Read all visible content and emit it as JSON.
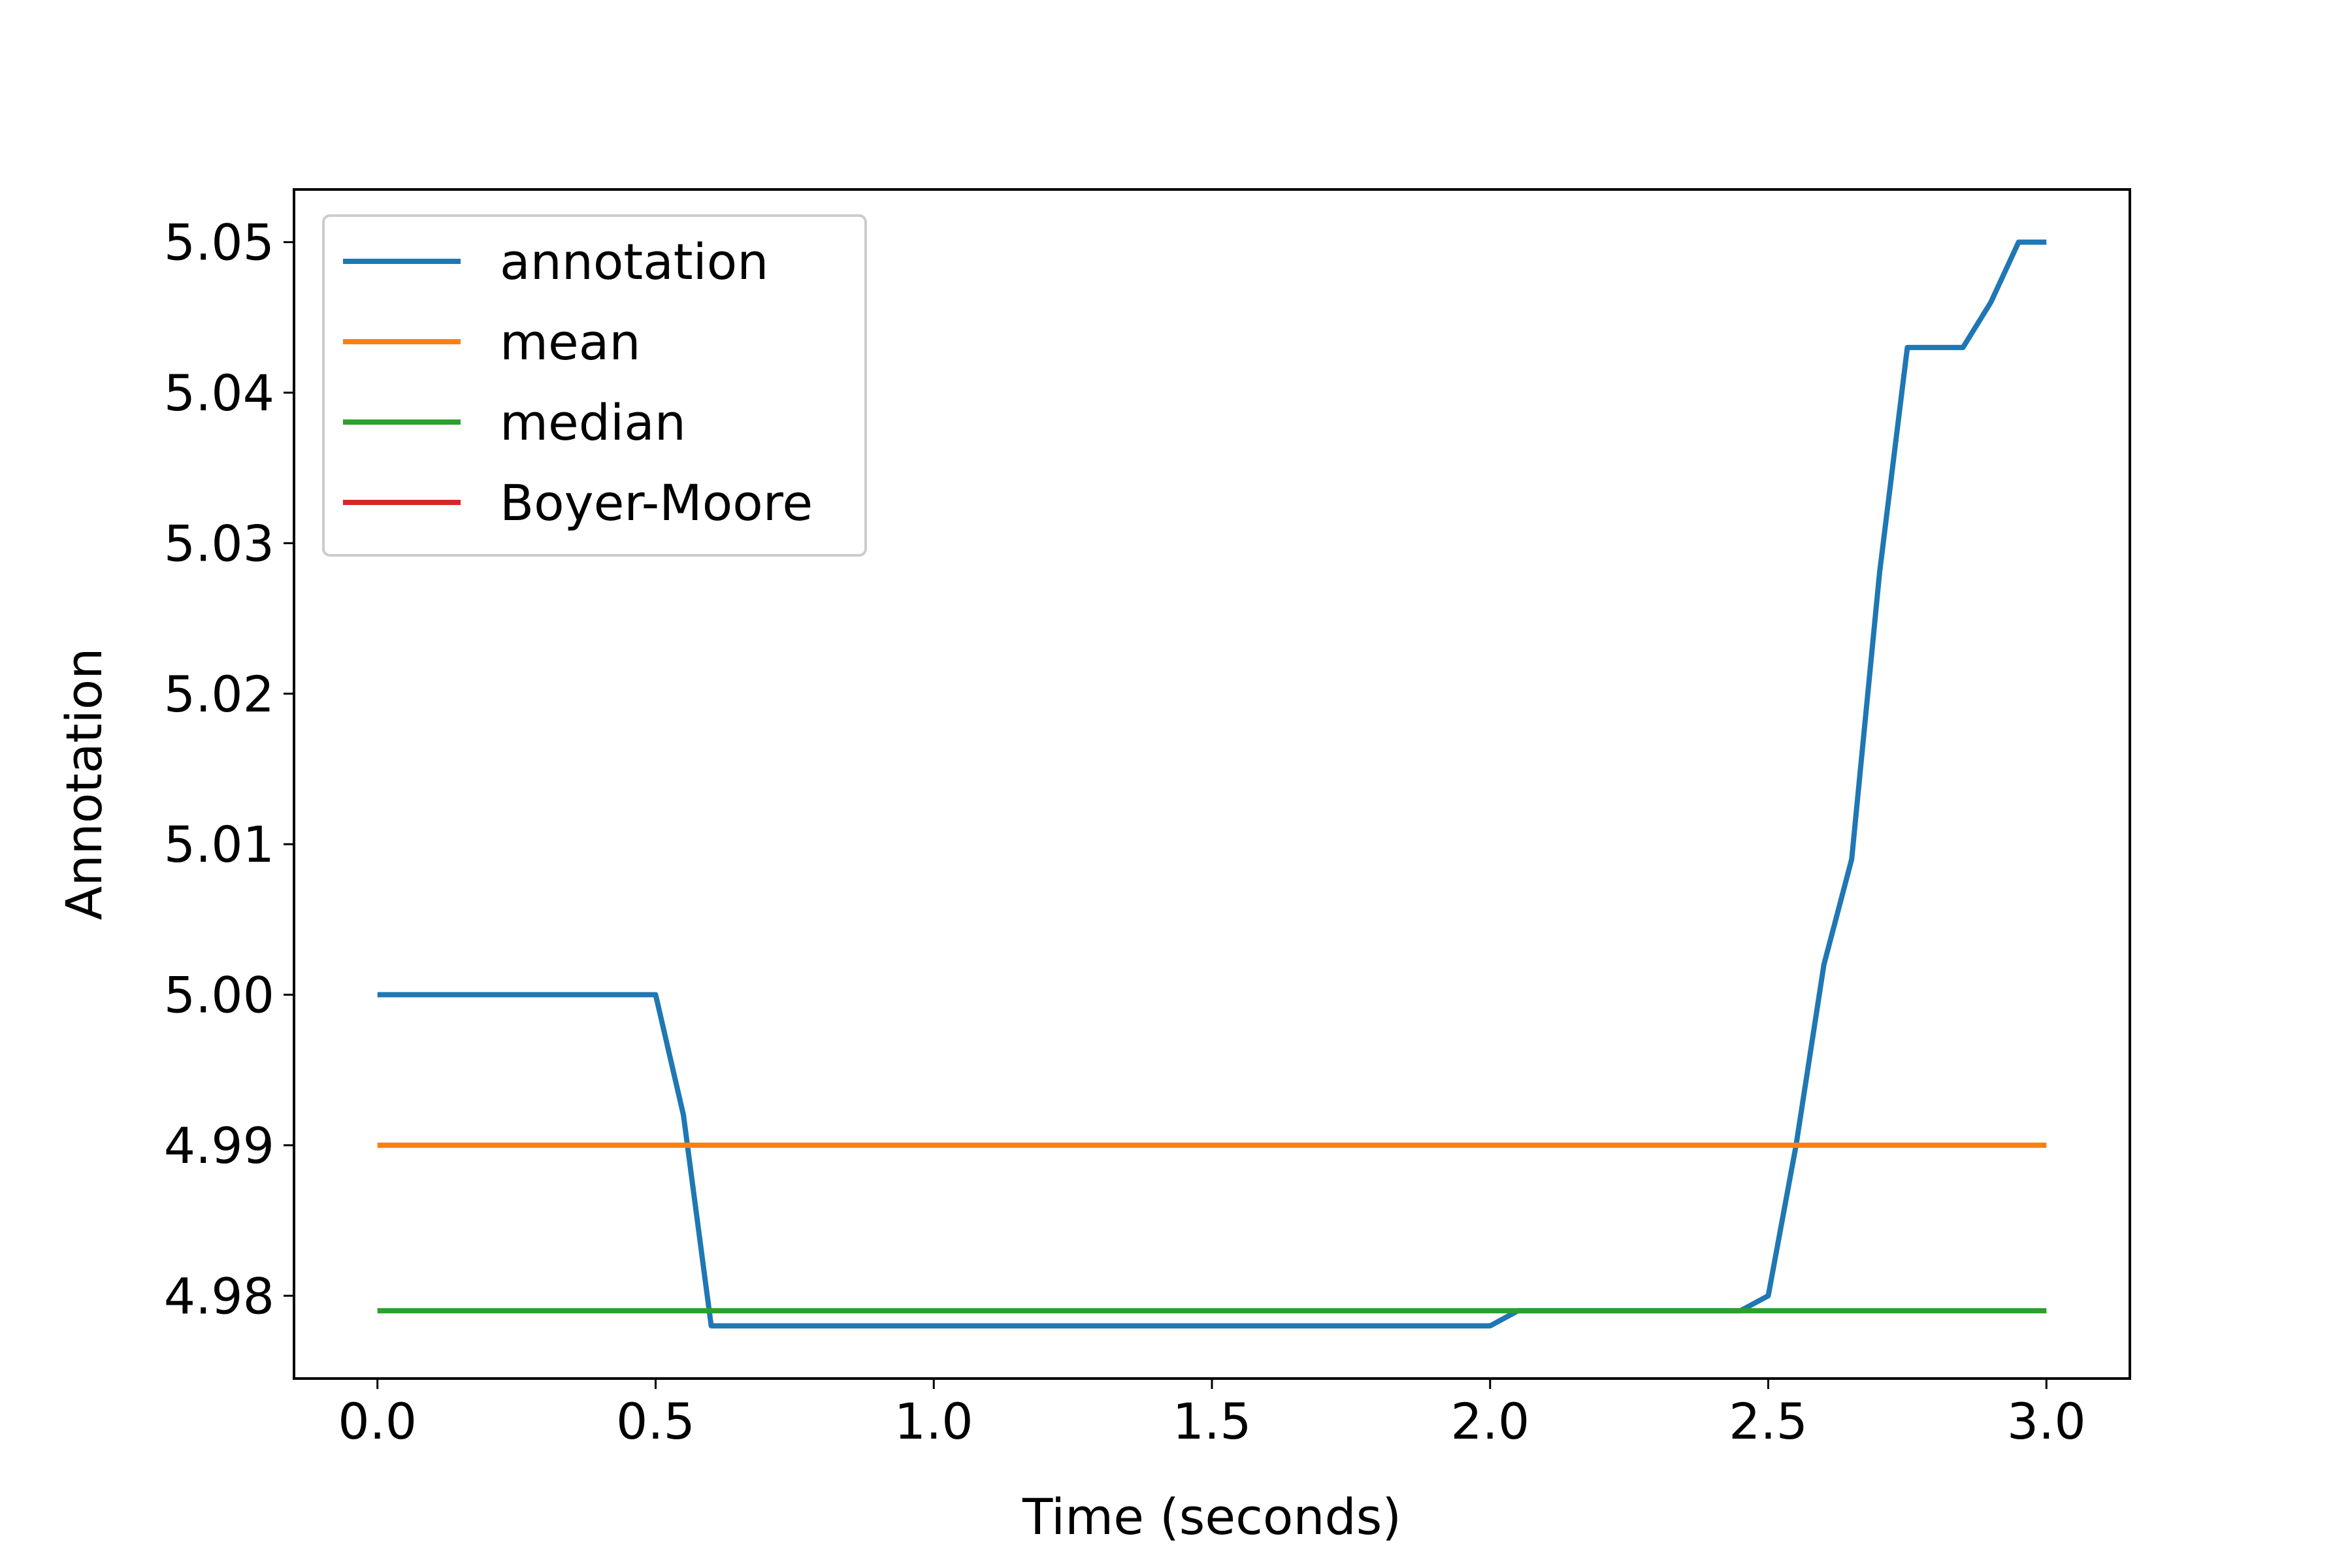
{
  "chart_data": {
    "type": "line",
    "title": "",
    "xlabel": "Time (seconds)",
    "ylabel": "Annotation",
    "xlim": [
      -0.15,
      3.15
    ],
    "ylim": [
      4.9745,
      5.0535
    ],
    "xticks": [
      0.0,
      0.5,
      1.0,
      1.5,
      2.0,
      2.5,
      3.0
    ],
    "xtick_labels": [
      "0.0",
      "0.5",
      "1.0",
      "1.5",
      "2.0",
      "2.5",
      "3.0"
    ],
    "yticks": [
      4.98,
      4.99,
      5.0,
      5.01,
      5.02,
      5.03,
      5.04,
      5.05
    ],
    "ytick_labels": [
      "4.98",
      "4.99",
      "5.00",
      "5.01",
      "5.02",
      "5.03",
      "5.04",
      "5.05"
    ],
    "grid": false,
    "legend_position": "top-left",
    "series": [
      {
        "name": "annotation",
        "color": "#1f77b4",
        "x": [
          0.0,
          0.5,
          0.55,
          0.6,
          0.65,
          1.0,
          1.5,
          2.0,
          2.05,
          2.1,
          2.4,
          2.45,
          2.5,
          2.55,
          2.6,
          2.65,
          2.7,
          2.75,
          2.8,
          2.85,
          2.9,
          2.95,
          3.0
        ],
        "y": [
          5.0,
          5.0,
          4.992,
          4.978,
          4.978,
          4.978,
          4.978,
          4.978,
          4.979,
          4.979,
          4.979,
          4.979,
          4.98,
          4.99,
          5.002,
          5.009,
          5.028,
          5.043,
          5.043,
          5.043,
          5.046,
          5.05,
          5.05
        ]
      },
      {
        "name": "mean",
        "color": "#ff7f0e",
        "x": [
          0.0,
          3.0
        ],
        "y": [
          4.99,
          4.99
        ]
      },
      {
        "name": "median",
        "color": "#2ca02c",
        "x": [
          0.0,
          3.0
        ],
        "y": [
          4.979,
          4.979
        ]
      },
      {
        "name": "Boyer-Moore",
        "color": "#d62728",
        "x": [],
        "y": []
      }
    ]
  }
}
